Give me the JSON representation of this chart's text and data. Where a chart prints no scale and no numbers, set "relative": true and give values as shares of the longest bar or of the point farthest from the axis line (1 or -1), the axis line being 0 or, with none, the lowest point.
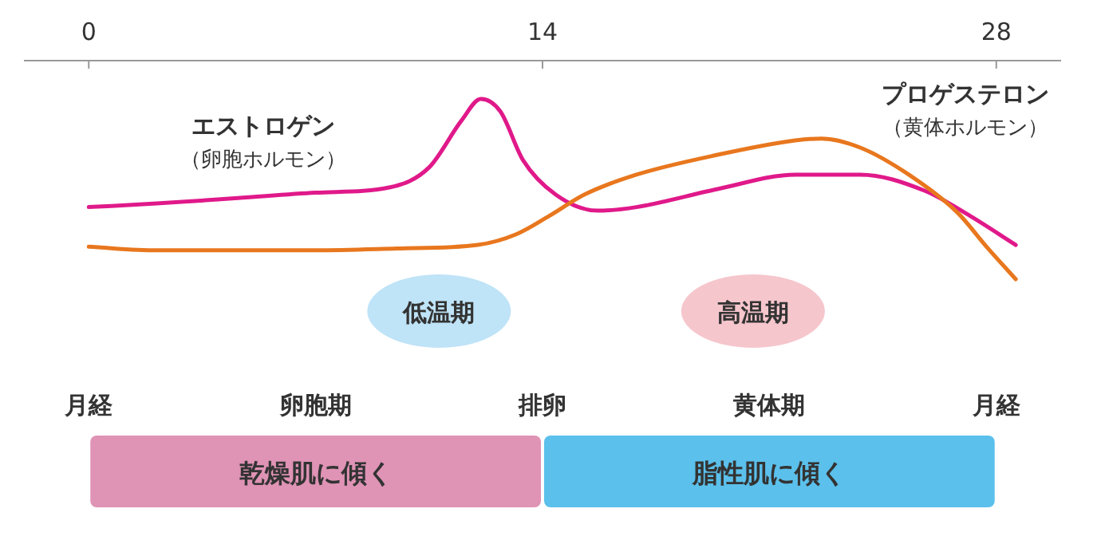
{
  "chart_data": {
    "type": "line",
    "relative": true,
    "xlim": [
      -2,
      30
    ],
    "xticks": [
      0,
      14,
      28
    ],
    "series": [
      {
        "name": "エストロゲン（卵胞ホルモン）",
        "color": "#e0198a",
        "x": [
          0,
          2.1,
          4.6,
          7.0,
          9.3,
          10.5,
          11.5,
          12.1,
          12.7,
          13.4,
          14.4,
          15.7,
          16.9,
          19.4,
          21.8,
          23.8,
          25.8,
          27.2,
          28.6
        ],
        "values": [
          0.4,
          0.42,
          0.45,
          0.48,
          0.51,
          0.62,
          0.88,
          1.0,
          0.93,
          0.66,
          0.47,
          0.38,
          0.4,
          0.5,
          0.58,
          0.58,
          0.49,
          0.35,
          0.19
        ]
      },
      {
        "name": "プロゲステロン（黄体ホルモン）",
        "color": "#e8771e",
        "x": [
          0,
          2.1,
          4.6,
          7.0,
          9.5,
          12.0,
          13.2,
          14.2,
          15.3,
          16.9,
          19.4,
          21.8,
          22.6,
          23.8,
          25.3,
          26.8,
          27.7,
          28.6
        ],
        "values": [
          0.18,
          0.16,
          0.16,
          0.16,
          0.17,
          0.19,
          0.25,
          0.35,
          0.47,
          0.58,
          0.69,
          0.77,
          0.78,
          0.73,
          0.58,
          0.37,
          0.18,
          0
        ]
      }
    ],
    "annotations": [
      "低温期",
      "高温期",
      "月経",
      "卵胞期",
      "排卵",
      "黄体期",
      "月経",
      "乾燥肌に傾く",
      "脂性肌に傾く"
    ]
  }
}
